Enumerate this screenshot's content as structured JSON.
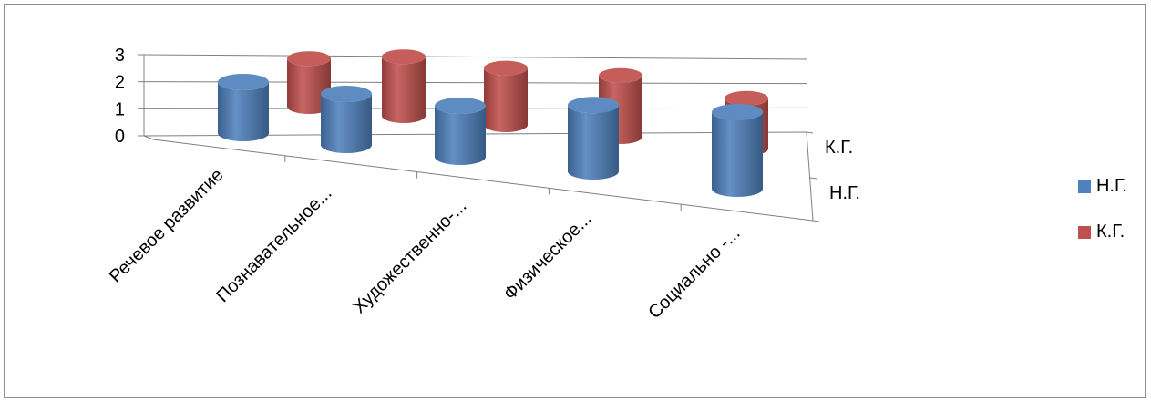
{
  "chart_data": {
    "type": "bar",
    "style": "3d-cylinder",
    "categories": [
      "Речевое развитие",
      "Познавательное...",
      "Художественно-...",
      "Физическое...",
      "Социально -..."
    ],
    "depth_labels": [
      "К.Г.",
      "Н.Г."
    ],
    "series": [
      {
        "name": "Н.Г.",
        "color": "#4f81bd",
        "values": [
          2,
          2,
          2,
          2.6,
          3
        ]
      },
      {
        "name": "К.Г.",
        "color": "#c0504d",
        "values": [
          2.2,
          2.7,
          2.6,
          2.8,
          2.3
        ]
      }
    ],
    "ylim": [
      0,
      3
    ],
    "yticks": [
      "0",
      "1",
      "2",
      "3"
    ],
    "grid": true,
    "legend": "right"
  }
}
